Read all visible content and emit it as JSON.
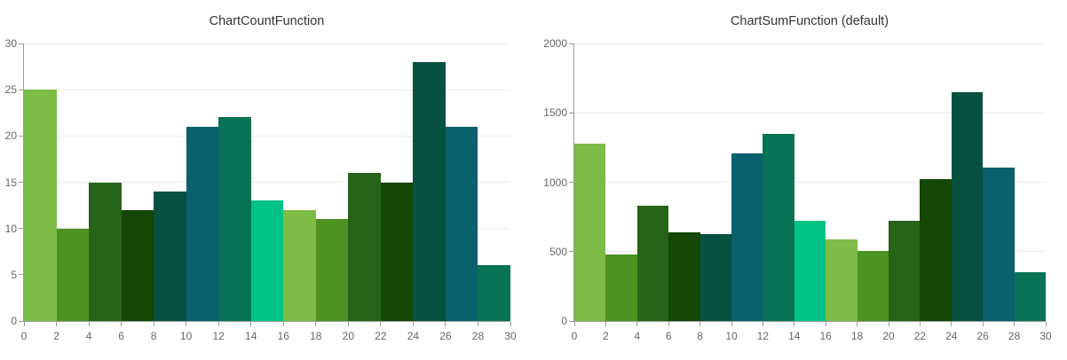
{
  "page": {
    "background": "#ffffff"
  },
  "style": {
    "axis_color": "#9a9a9a",
    "grid_color": "#e8e8e8",
    "tick_label_color": "#666666",
    "title_color": "#333333",
    "palette": [
      "#7cbc47",
      "#4e9222",
      "#27641a",
      "#154706",
      "#075140",
      "#0a606c",
      "#077354",
      "#03c286"
    ]
  },
  "chart_data": [
    {
      "type": "bar",
      "title": "ChartCountFunction",
      "xlabel": "",
      "ylabel": "",
      "xlim": [
        0,
        30
      ],
      "ylim": [
        0,
        30
      ],
      "bin_width": 2,
      "bin_starts": [
        0,
        2,
        4,
        6,
        8,
        10,
        12,
        14,
        16,
        18,
        20,
        22,
        24,
        26,
        28
      ],
      "values": [
        25,
        10,
        15,
        12,
        14,
        21,
        22,
        13,
        12,
        11,
        16,
        15,
        28,
        21,
        6
      ],
      "y_ticks": [
        0,
        5,
        10,
        15,
        20,
        25,
        30
      ],
      "x_ticks": [
        0,
        2,
        4,
        6,
        8,
        10,
        12,
        14,
        16,
        18,
        20,
        22,
        24,
        26,
        28,
        30
      ],
      "grid": true,
      "legend": false
    },
    {
      "type": "bar",
      "title": "ChartSumFunction (default)",
      "xlabel": "",
      "ylabel": "",
      "xlim": [
        0,
        30
      ],
      "ylim": [
        0,
        2000
      ],
      "bin_width": 2,
      "bin_starts": [
        0,
        2,
        4,
        6,
        8,
        10,
        12,
        14,
        16,
        18,
        20,
        22,
        24,
        26,
        28
      ],
      "values": [
        1275,
        480,
        830,
        640,
        625,
        1205,
        1350,
        720,
        590,
        505,
        725,
        1020,
        1650,
        1105,
        350
      ],
      "y_ticks": [
        0,
        500,
        1000,
        1500,
        2000
      ],
      "x_ticks": [
        0,
        2,
        4,
        6,
        8,
        10,
        12,
        14,
        16,
        18,
        20,
        22,
        24,
        26,
        28,
        30
      ],
      "grid": true,
      "legend": false
    }
  ]
}
